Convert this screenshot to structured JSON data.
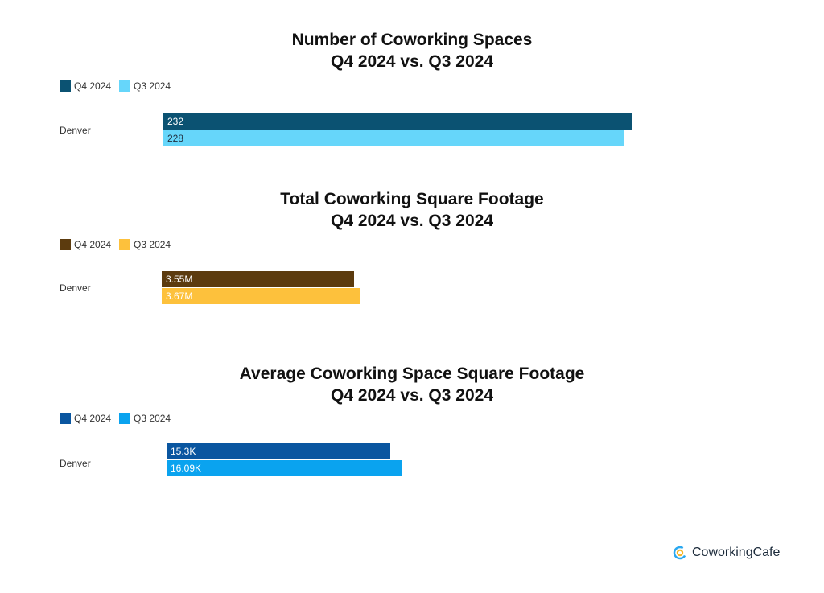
{
  "chart_data": [
    {
      "type": "bar",
      "title": "Number of Coworking Spaces",
      "subtitle": "Q4 2024 vs. Q3 2024",
      "categories": [
        "Denver"
      ],
      "series": [
        {
          "name": "Q4 2024",
          "values": [
            232
          ],
          "labels": [
            "232"
          ],
          "color": "#0b5272"
        },
        {
          "name": "Q3 2024",
          "values": [
            228
          ],
          "labels": [
            "228"
          ],
          "color": "#66d6fa"
        }
      ]
    },
    {
      "type": "bar",
      "title": "Total Coworking Square Footage",
      "subtitle": "Q4 2024 vs. Q3 2024",
      "categories": [
        "Denver"
      ],
      "series": [
        {
          "name": "Q4 2024",
          "values": [
            3550000
          ],
          "labels": [
            "3.55M"
          ],
          "color": "#5c3b0e"
        },
        {
          "name": "Q3 2024",
          "values": [
            3670000
          ],
          "labels": [
            "3.67M"
          ],
          "color": "#fdc13c"
        }
      ]
    },
    {
      "type": "bar",
      "title": "Average Coworking Space Square Footage",
      "subtitle": "Q4 2024 vs. Q3 2024",
      "categories": [
        "Denver"
      ],
      "series": [
        {
          "name": "Q4 2024",
          "values": [
            15300
          ],
          "labels": [
            "15.3K"
          ],
          "color": "#0a56a0"
        },
        {
          "name": "Q3 2024",
          "values": [
            16090
          ],
          "labels": [
            "16.09K"
          ],
          "color": "#0aa3ef"
        }
      ]
    }
  ],
  "brand": {
    "name": "CoworkingCafe"
  },
  "colors": {
    "brand_ring": "#2aa8f0",
    "brand_ring_inner": "#f5b521"
  }
}
